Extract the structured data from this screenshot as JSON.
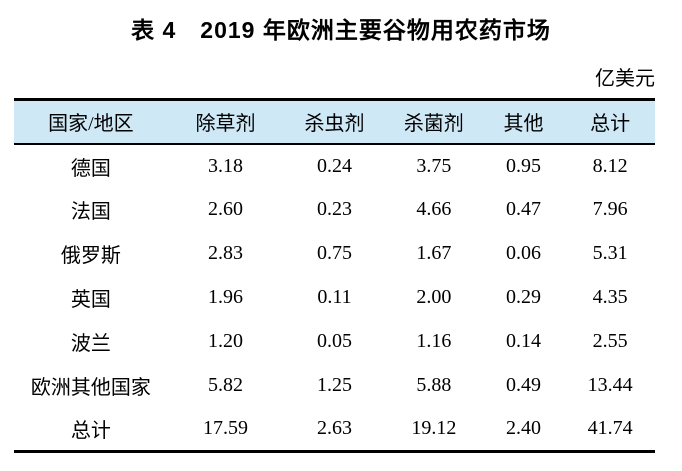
{
  "title": "表 4　2019 年欧洲主要谷物用农药市场",
  "unit_label": "亿美元",
  "colors": {
    "header_bg": "#cfe8f6",
    "rule_line": "#000000",
    "text": "#000000"
  },
  "table": {
    "columns": [
      "国家/地区",
      "除草剂",
      "杀虫剂",
      "杀菌剂",
      "其他",
      "总计"
    ],
    "rows": [
      {
        "label": "德国",
        "values": [
          "3.18",
          "0.24",
          "3.75",
          "0.95",
          "8.12"
        ]
      },
      {
        "label": "法国",
        "values": [
          "2.60",
          "0.23",
          "4.66",
          "0.47",
          "7.96"
        ]
      },
      {
        "label": "俄罗斯",
        "values": [
          "2.83",
          "0.75",
          "1.67",
          "0.06",
          "5.31"
        ]
      },
      {
        "label": "英国",
        "values": [
          "1.96",
          "0.11",
          "2.00",
          "0.29",
          "4.35"
        ]
      },
      {
        "label": "波兰",
        "values": [
          "1.20",
          "0.05",
          "1.16",
          "0.14",
          "2.55"
        ]
      },
      {
        "label": "欧洲其他国家",
        "values": [
          "5.82",
          "1.25",
          "5.88",
          "0.49",
          "13.44"
        ]
      },
      {
        "label": "总计",
        "values": [
          "17.59",
          "2.63",
          "19.12",
          "2.40",
          "41.74"
        ]
      }
    ]
  },
  "chart_data": {
    "type": "table",
    "title": "表 4　2019 年欧洲主要谷物用农药市场",
    "unit": "亿美元",
    "columns": [
      "国家/地区",
      "除草剂",
      "杀虫剂",
      "杀菌剂",
      "其他",
      "总计"
    ],
    "rows": [
      [
        "德国",
        3.18,
        0.24,
        3.75,
        0.95,
        8.12
      ],
      [
        "法国",
        2.6,
        0.23,
        4.66,
        0.47,
        7.96
      ],
      [
        "俄罗斯",
        2.83,
        0.75,
        1.67,
        0.06,
        5.31
      ],
      [
        "英国",
        1.96,
        0.11,
        2.0,
        0.29,
        4.35
      ],
      [
        "波兰",
        1.2,
        0.05,
        1.16,
        0.14,
        2.55
      ],
      [
        "欧洲其他国家",
        5.82,
        1.25,
        5.88,
        0.49,
        13.44
      ],
      [
        "总计",
        17.59,
        2.63,
        19.12,
        2.4,
        41.74
      ]
    ]
  }
}
